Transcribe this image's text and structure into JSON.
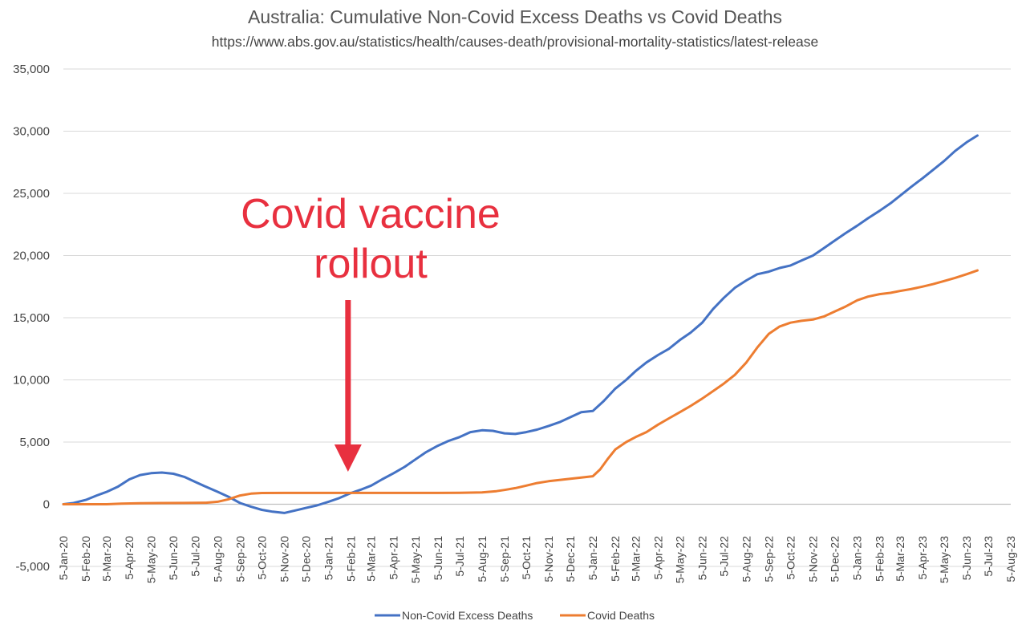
{
  "chart_data": {
    "type": "line",
    "title": "Australia:  Cumulative Non-Covid Excess Deaths vs Covid Deaths",
    "subtitle": "https://www.abs.gov.au/statistics/health/causes-death/provisional-mortality-statistics/latest-release",
    "annotation": {
      "text_line1": "Covid vaccine",
      "text_line2": "rollout",
      "at_date": "2021-02-01",
      "color": "#e8303f"
    },
    "ylim": [
      -5000,
      35000
    ],
    "yticks": [
      -5000,
      0,
      5000,
      10000,
      15000,
      20000,
      25000,
      30000,
      35000
    ],
    "ytick_labels": [
      "-5,000",
      "0",
      "5,000",
      "10,000",
      "15,000",
      "20,000",
      "25,000",
      "30,000",
      "35,000"
    ],
    "xlim": [
      "2020-01-05",
      "2023-08-05"
    ],
    "xtick_labels": [
      "5-Jan-20",
      "5-Feb-20",
      "5-Mar-20",
      "5-Apr-20",
      "5-May-20",
      "5-Jun-20",
      "5-Jul-20",
      "5-Aug-20",
      "5-Sep-20",
      "5-Oct-20",
      "5-Nov-20",
      "5-Dec-20",
      "5-Jan-21",
      "5-Feb-21",
      "5-Mar-21",
      "5-Apr-21",
      "5-May-21",
      "5-Jun-21",
      "5-Jul-21",
      "5-Aug-21",
      "5-Sep-21",
      "5-Oct-21",
      "5-Nov-21",
      "5-Dec-21",
      "5-Jan-22",
      "5-Feb-22",
      "5-Mar-22",
      "5-Apr-22",
      "5-May-22",
      "5-Jun-22",
      "5-Jul-22",
      "5-Aug-22",
      "5-Sep-22",
      "5-Oct-22",
      "5-Nov-22",
      "5-Dec-22",
      "5-Jan-23",
      "5-Feb-23",
      "5-Mar-23",
      "5-Apr-23",
      "5-May-23",
      "5-Jun-23",
      "5-Jul-23",
      "5-Aug-23"
    ],
    "grid": true,
    "legend_position": "bottom",
    "series": [
      {
        "name": "Non-Covid Excess Deaths",
        "color": "#4472c4",
        "points": [
          [
            "2020-01-05",
            0
          ],
          [
            "2020-01-19",
            100
          ],
          [
            "2020-02-05",
            350
          ],
          [
            "2020-02-20",
            700
          ],
          [
            "2020-03-05",
            1000
          ],
          [
            "2020-03-20",
            1400
          ],
          [
            "2020-04-05",
            2000
          ],
          [
            "2020-04-20",
            2350
          ],
          [
            "2020-05-05",
            2500
          ],
          [
            "2020-05-20",
            2550
          ],
          [
            "2020-06-05",
            2450
          ],
          [
            "2020-06-20",
            2200
          ],
          [
            "2020-07-05",
            1800
          ],
          [
            "2020-07-20",
            1400
          ],
          [
            "2020-08-05",
            1000
          ],
          [
            "2020-08-20",
            600
          ],
          [
            "2020-09-05",
            100
          ],
          [
            "2020-09-20",
            -200
          ],
          [
            "2020-10-05",
            -450
          ],
          [
            "2020-10-20",
            -600
          ],
          [
            "2020-11-05",
            -700
          ],
          [
            "2020-11-20",
            -500
          ],
          [
            "2020-12-05",
            -300
          ],
          [
            "2020-12-20",
            -100
          ],
          [
            "2021-01-05",
            200
          ],
          [
            "2021-01-20",
            500
          ],
          [
            "2021-02-05",
            900
          ],
          [
            "2021-02-20",
            1200
          ],
          [
            "2021-03-05",
            1500
          ],
          [
            "2021-03-20",
            2000
          ],
          [
            "2021-04-05",
            2500
          ],
          [
            "2021-04-20",
            3000
          ],
          [
            "2021-05-05",
            3600
          ],
          [
            "2021-05-20",
            4200
          ],
          [
            "2021-06-05",
            4700
          ],
          [
            "2021-06-20",
            5100
          ],
          [
            "2021-07-05",
            5400
          ],
          [
            "2021-07-20",
            5800
          ],
          [
            "2021-08-05",
            5950
          ],
          [
            "2021-08-20",
            5900
          ],
          [
            "2021-09-05",
            5700
          ],
          [
            "2021-09-20",
            5650
          ],
          [
            "2021-10-05",
            5800
          ],
          [
            "2021-10-20",
            6000
          ],
          [
            "2021-11-05",
            6300
          ],
          [
            "2021-11-20",
            6600
          ],
          [
            "2021-12-05",
            7000
          ],
          [
            "2021-12-20",
            7400
          ],
          [
            "2022-01-05",
            7500
          ],
          [
            "2022-01-20",
            8300
          ],
          [
            "2022-02-05",
            9300
          ],
          [
            "2022-02-20",
            10000
          ],
          [
            "2022-03-05",
            10700
          ],
          [
            "2022-03-20",
            11400
          ],
          [
            "2022-04-05",
            12000
          ],
          [
            "2022-04-20",
            12500
          ],
          [
            "2022-05-05",
            13200
          ],
          [
            "2022-05-20",
            13800
          ],
          [
            "2022-06-05",
            14600
          ],
          [
            "2022-06-20",
            15700
          ],
          [
            "2022-07-05",
            16600
          ],
          [
            "2022-07-20",
            17400
          ],
          [
            "2022-08-05",
            18000
          ],
          [
            "2022-08-20",
            18500
          ],
          [
            "2022-09-05",
            18700
          ],
          [
            "2022-09-20",
            19000
          ],
          [
            "2022-10-05",
            19200
          ],
          [
            "2022-10-20",
            19600
          ],
          [
            "2022-11-05",
            20000
          ],
          [
            "2022-11-20",
            20600
          ],
          [
            "2022-12-05",
            21200
          ],
          [
            "2022-12-20",
            21800
          ],
          [
            "2023-01-05",
            22400
          ],
          [
            "2023-01-20",
            23000
          ],
          [
            "2023-02-05",
            23600
          ],
          [
            "2023-02-20",
            24200
          ],
          [
            "2023-03-05",
            24800
          ],
          [
            "2023-03-20",
            25500
          ],
          [
            "2023-04-05",
            26200
          ],
          [
            "2023-04-20",
            26900
          ],
          [
            "2023-05-05",
            27600
          ],
          [
            "2023-05-20",
            28400
          ],
          [
            "2023-06-05",
            29100
          ],
          [
            "2023-06-20",
            29650
          ]
        ]
      },
      {
        "name": "Covid Deaths",
        "color": "#ed7d31",
        "points": [
          [
            "2020-01-05",
            0
          ],
          [
            "2020-02-05",
            0
          ],
          [
            "2020-03-05",
            0
          ],
          [
            "2020-03-25",
            50
          ],
          [
            "2020-04-20",
            80
          ],
          [
            "2020-05-20",
            100
          ],
          [
            "2020-06-20",
            104
          ],
          [
            "2020-07-20",
            120
          ],
          [
            "2020-08-05",
            200
          ],
          [
            "2020-08-20",
            400
          ],
          [
            "2020-09-05",
            700
          ],
          [
            "2020-09-20",
            850
          ],
          [
            "2020-10-05",
            900
          ],
          [
            "2020-11-05",
            907
          ],
          [
            "2020-12-05",
            909
          ],
          [
            "2021-01-05",
            909
          ],
          [
            "2021-02-05",
            910
          ],
          [
            "2021-03-05",
            910
          ],
          [
            "2021-04-05",
            910
          ],
          [
            "2021-05-05",
            910
          ],
          [
            "2021-06-05",
            910
          ],
          [
            "2021-07-05",
            915
          ],
          [
            "2021-08-05",
            950
          ],
          [
            "2021-08-25",
            1050
          ],
          [
            "2021-09-05",
            1150
          ],
          [
            "2021-09-20",
            1300
          ],
          [
            "2021-10-05",
            1500
          ],
          [
            "2021-10-20",
            1700
          ],
          [
            "2021-11-05",
            1850
          ],
          [
            "2021-11-20",
            1950
          ],
          [
            "2021-12-05",
            2050
          ],
          [
            "2021-12-20",
            2150
          ],
          [
            "2022-01-05",
            2250
          ],
          [
            "2022-01-15",
            2800
          ],
          [
            "2022-01-25",
            3600
          ],
          [
            "2022-02-05",
            4400
          ],
          [
            "2022-02-20",
            5000
          ],
          [
            "2022-03-05",
            5400
          ],
          [
            "2022-03-20",
            5800
          ],
          [
            "2022-04-05",
            6400
          ],
          [
            "2022-04-20",
            6900
          ],
          [
            "2022-05-05",
            7400
          ],
          [
            "2022-05-20",
            7900
          ],
          [
            "2022-06-05",
            8500
          ],
          [
            "2022-06-20",
            9100
          ],
          [
            "2022-07-05",
            9700
          ],
          [
            "2022-07-20",
            10400
          ],
          [
            "2022-08-05",
            11400
          ],
          [
            "2022-08-20",
            12600
          ],
          [
            "2022-09-05",
            13700
          ],
          [
            "2022-09-20",
            14300
          ],
          [
            "2022-10-05",
            14600
          ],
          [
            "2022-10-20",
            14750
          ],
          [
            "2022-11-05",
            14850
          ],
          [
            "2022-11-20",
            15100
          ],
          [
            "2022-12-05",
            15500
          ],
          [
            "2022-12-20",
            15900
          ],
          [
            "2023-01-05",
            16400
          ],
          [
            "2023-01-20",
            16700
          ],
          [
            "2023-02-05",
            16900
          ],
          [
            "2023-02-20",
            17000
          ],
          [
            "2023-03-05",
            17150
          ],
          [
            "2023-03-20",
            17300
          ],
          [
            "2023-04-05",
            17500
          ],
          [
            "2023-04-20",
            17700
          ],
          [
            "2023-05-05",
            17950
          ],
          [
            "2023-05-20",
            18200
          ],
          [
            "2023-06-05",
            18500
          ],
          [
            "2023-06-20",
            18800
          ]
        ]
      }
    ]
  }
}
